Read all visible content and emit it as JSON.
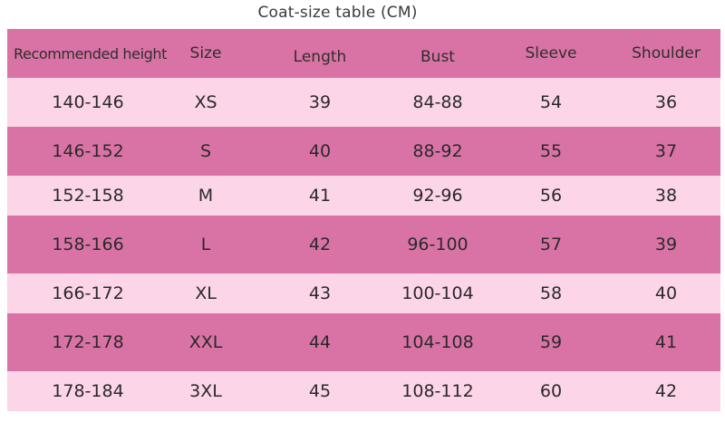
{
  "title": "Coat-size table (CM)",
  "colors": {
    "dark_row": "#da73a5",
    "light_row": "#fcd5e8",
    "text": "#2a2a2a"
  },
  "headers": [
    "Recommended height",
    "Size",
    "Length",
    "Bust",
    "Sleeve",
    "Shoulder"
  ],
  "rows": [
    [
      "140-146",
      "XS",
      "39",
      "84-88",
      "54",
      "36"
    ],
    [
      "146-152",
      "S",
      "40",
      "88-92",
      "55",
      "37"
    ],
    [
      "152-158",
      "M",
      "41",
      "92-96",
      "56",
      "38"
    ],
    [
      "158-166",
      "L",
      "42",
      "96-100",
      "57",
      "39"
    ],
    [
      "166-172",
      "XL",
      "43",
      "100-104",
      "58",
      "40"
    ],
    [
      "172-178",
      "XXL",
      "44",
      "104-108",
      "59",
      "41"
    ],
    [
      "178-184",
      "3XL",
      "45",
      "108-112",
      "60",
      "42"
    ]
  ]
}
